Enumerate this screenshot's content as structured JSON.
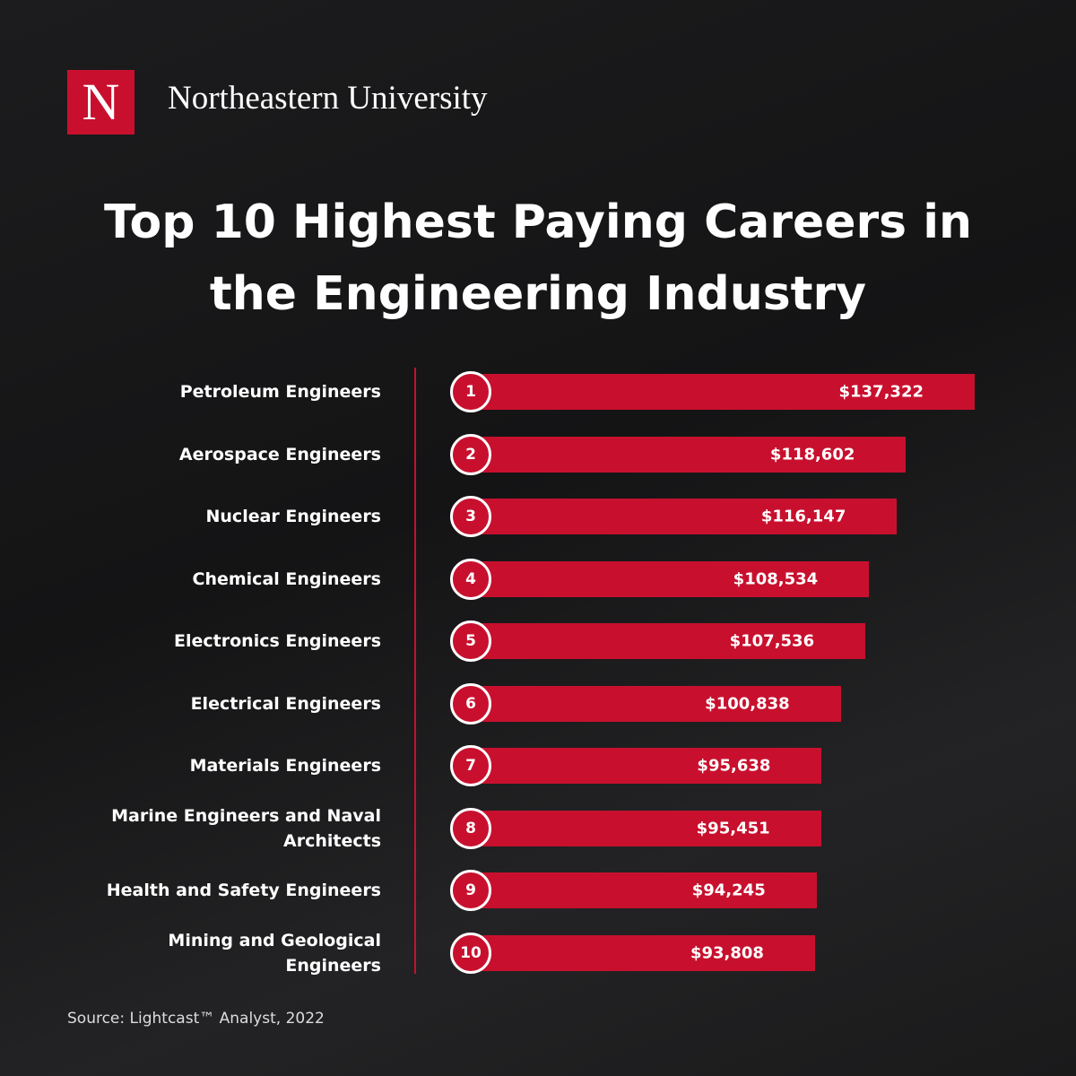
{
  "brand": {
    "logo": "N",
    "name": "Northeastern University"
  },
  "chart_data": {
    "type": "bar",
    "orientation": "horizontal",
    "title": "Top 10 Highest Paying Careers in the Engineering Industry",
    "categories": [
      "Petroleum Engineers",
      "Aerospace Engineers",
      "Nuclear Engineers",
      "Chemical Engineers",
      "Electronics Engineers",
      "Electrical Engineers",
      "Materials Engineers",
      "Marine Engineers and Naval Architects",
      "Health and Safety Engineers",
      "Mining and Geological Engineers"
    ],
    "ranks": [
      1,
      2,
      3,
      4,
      5,
      6,
      7,
      8,
      9,
      10
    ],
    "values": [
      137322,
      118602,
      116147,
      108534,
      107536,
      100838,
      95638,
      95451,
      94245,
      93808
    ],
    "value_labels": [
      "$137,322",
      "$118,602",
      "$116,147",
      "$108,534",
      "$107,536",
      "$100,838",
      "$95,638",
      "$95,451",
      "$94,245",
      "$93,808"
    ],
    "color": "#c8102e",
    "source": "Source: Lightcast™ Analyst, 2022"
  }
}
